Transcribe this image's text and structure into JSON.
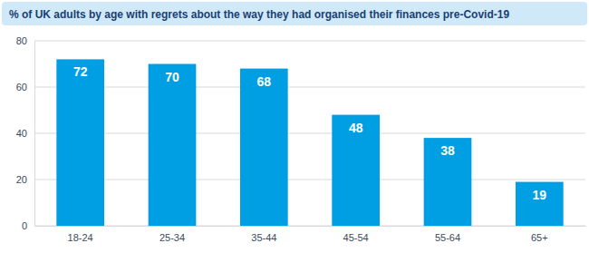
{
  "chart_data": {
    "type": "bar",
    "title": "% of UK adults by age with regrets about the way they had organised their finances pre-Covid-19",
    "categories": [
      "18-24",
      "25-34",
      "35-44",
      "45-54",
      "55-64",
      "65+"
    ],
    "values": [
      72,
      70,
      68,
      48,
      38,
      19
    ],
    "color": "#009fe3",
    "ylim": [
      0,
      80
    ],
    "yticks": [
      0,
      20,
      40,
      60,
      80
    ],
    "grid": true,
    "data_labels": true
  }
}
